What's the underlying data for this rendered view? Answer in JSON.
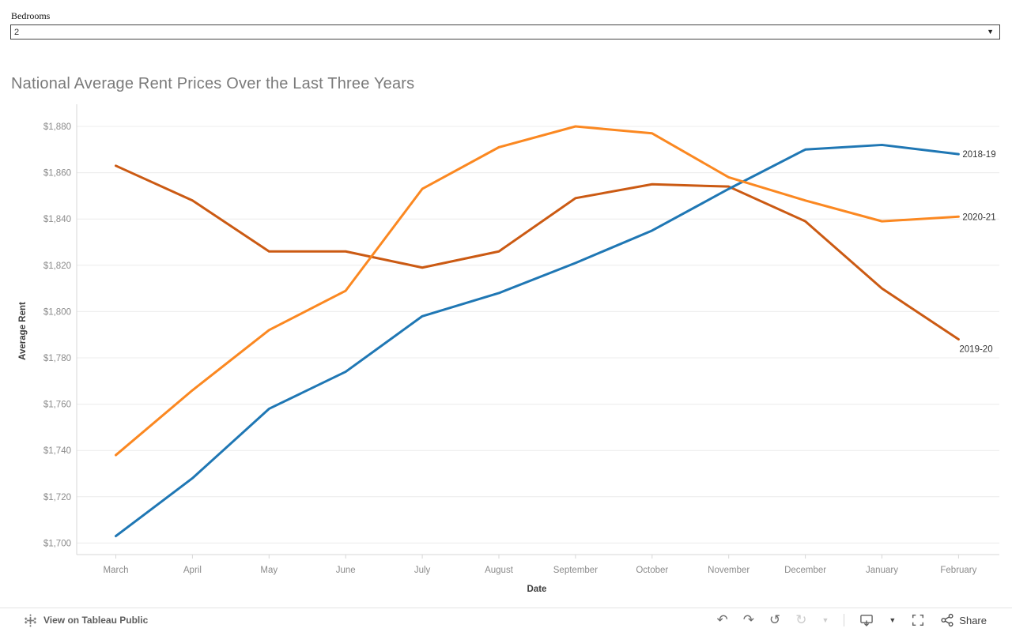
{
  "filter": {
    "label": "Bedrooms",
    "value": "2",
    "caret_icon": "▼"
  },
  "title": "National Average Rent Prices Over the Last Three Years",
  "chart_data": {
    "type": "line",
    "title": "National Average Rent Prices Over the Last Three Years",
    "xlabel": "Date",
    "ylabel": "Average Rent",
    "categories": [
      "March",
      "April",
      "May",
      "June",
      "July",
      "August",
      "September",
      "October",
      "November",
      "December",
      "January",
      "February"
    ],
    "series": [
      {
        "name": "2018-19",
        "color": "#1f77b4",
        "label_placement": "right",
        "values": [
          1703,
          1728,
          1758,
          1774,
          1798,
          1808,
          1821,
          1835,
          1853,
          1870,
          1872,
          1868
        ]
      },
      {
        "name": "2019-20",
        "color": "#cb5a13",
        "label_placement": "below",
        "values": [
          1863,
          1848,
          1826,
          1826,
          1819,
          1826,
          1849,
          1855,
          1854,
          1839,
          1810,
          1788
        ]
      },
      {
        "name": "2020-21",
        "color": "#fb8821",
        "label_placement": "right",
        "values": [
          1738,
          1766,
          1792,
          1809,
          1853,
          1871,
          1880,
          1877,
          1858,
          1848,
          1839,
          1841
        ]
      }
    ],
    "ylim": [
      1700,
      1880
    ],
    "ytick_step": 20,
    "ytick_labels": [
      "$1,700",
      "$1,720",
      "$1,740",
      "$1,760",
      "$1,780",
      "$1,800",
      "$1,820",
      "$1,840",
      "$1,860",
      "$1,880"
    ],
    "grid": true,
    "legend_position": "line-end-labels"
  },
  "toolbar": {
    "view_on_tableau": "View on Tableau Public",
    "share_label": "Share",
    "icons": {
      "undo": "↶",
      "redo": "↷",
      "replay": "↺",
      "refresh": "↻",
      "caret": "▼"
    }
  },
  "colors": {
    "accent_blue": "#1f77b4",
    "accent_dark_orange": "#cb5a13",
    "accent_orange": "#fb8821",
    "gridline": "#ececec",
    "axis_line": "#d7d7d7",
    "tick_text": "#8b8b8b",
    "title_text": "#7a7a7a"
  }
}
